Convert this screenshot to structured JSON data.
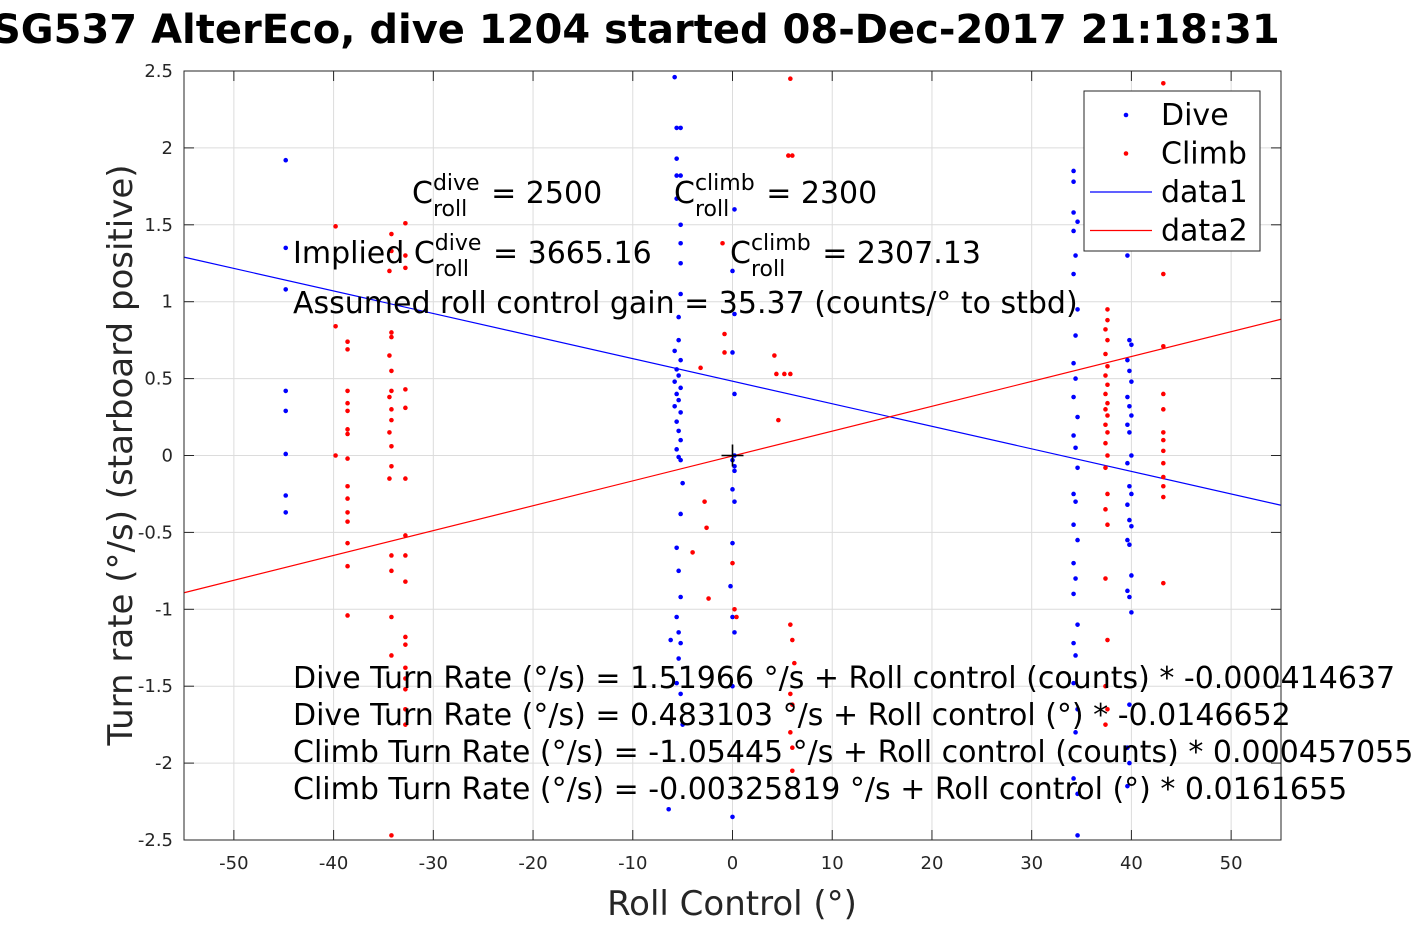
{
  "chart_data": {
    "type": "scatter",
    "title": "SG537 AlterEco, dive 1204 started 08-Dec-2017 21:18:31",
    "xlabel": "Roll Control (°)",
    "ylabel": "Turn rate (°/s) (starboard positive)",
    "xlim": [
      -55,
      55
    ],
    "ylim": [
      -2.5,
      2.5
    ],
    "xticks": [
      -50,
      -40,
      -30,
      -20,
      -10,
      0,
      10,
      20,
      30,
      40,
      50
    ],
    "yticks": [
      2.5,
      2,
      1.5,
      1,
      0.5,
      0,
      -0.5,
      -1,
      -1.5,
      -2,
      -2.5
    ],
    "grid": true,
    "legend_position": "top-right",
    "legend": [
      "Dive",
      "Climb",
      "data1",
      "data2"
    ],
    "colors": {
      "dive": "#0000ff",
      "climb": "#ff0000",
      "marker": "#000000"
    },
    "series": [
      {
        "name": "Dive",
        "kind": "points",
        "color": "#0000ff",
        "points": [
          [
            -44.8,
            1.92
          ],
          [
            -44.8,
            1.35
          ],
          [
            -44.8,
            1.08
          ],
          [
            -44.8,
            0.42
          ],
          [
            -44.8,
            0.29
          ],
          [
            -44.8,
            0.01
          ],
          [
            -44.8,
            -0.26
          ],
          [
            -44.8,
            -0.37
          ],
          [
            -5.8,
            2.46
          ],
          [
            -5.6,
            2.13
          ],
          [
            -5.2,
            2.13
          ],
          [
            -5.6,
            1.93
          ],
          [
            -5.6,
            1.82
          ],
          [
            -5.2,
            1.82
          ],
          [
            -5.6,
            1.67
          ],
          [
            -5.2,
            1.5
          ],
          [
            -5.2,
            1.38
          ],
          [
            -5.2,
            1.25
          ],
          [
            -5.2,
            1.05
          ],
          [
            -5.4,
            0.9
          ],
          [
            -5.4,
            0.75
          ],
          [
            -5.8,
            0.68
          ],
          [
            -5.2,
            0.62
          ],
          [
            -5.6,
            0.56
          ],
          [
            -5.4,
            0.52
          ],
          [
            -5.8,
            0.48
          ],
          [
            -5.2,
            0.44
          ],
          [
            -5.6,
            0.4
          ],
          [
            -5.4,
            0.36
          ],
          [
            -5.8,
            0.32
          ],
          [
            -5.2,
            0.28
          ],
          [
            -5.6,
            0.22
          ],
          [
            -5.4,
            0.16
          ],
          [
            -5.2,
            0.1
          ],
          [
            -5.6,
            0.04
          ],
          [
            -5.4,
            -0.01
          ],
          [
            -5.2,
            -0.03
          ],
          [
            -5.0,
            -0.18
          ],
          [
            -5.2,
            -0.38
          ],
          [
            -5.6,
            -0.6
          ],
          [
            -5.4,
            -0.75
          ],
          [
            -5.2,
            -0.92
          ],
          [
            -5.6,
            -1.05
          ],
          [
            -5.4,
            -1.15
          ],
          [
            -5.2,
            -1.22
          ],
          [
            -6.2,
            -1.2
          ],
          [
            -5.4,
            -1.32
          ],
          [
            -5.6,
            -1.48
          ],
          [
            -5.2,
            -1.55
          ],
          [
            -5.0,
            -1.75
          ],
          [
            -6.4,
            -2.3
          ],
          [
            0.2,
            1.6
          ],
          [
            0.0,
            1.2
          ],
          [
            0.2,
            0.92
          ],
          [
            0.0,
            0.67
          ],
          [
            0.2,
            0.4
          ],
          [
            0.2,
            0.0
          ],
          [
            0.0,
            -0.03
          ],
          [
            0.2,
            -0.07
          ],
          [
            0.2,
            -0.1
          ],
          [
            0.0,
            -0.22
          ],
          [
            0.2,
            -0.3
          ],
          [
            0.0,
            -0.57
          ],
          [
            -0.2,
            -0.85
          ],
          [
            0.0,
            -1.05
          ],
          [
            0.2,
            -1.15
          ],
          [
            0.0,
            -1.5
          ],
          [
            0.0,
            -2.35
          ],
          [
            34.2,
            1.85
          ],
          [
            34.2,
            1.78
          ],
          [
            34.2,
            1.58
          ],
          [
            34.6,
            1.52
          ],
          [
            34.2,
            1.46
          ],
          [
            34.4,
            1.3
          ],
          [
            34.2,
            1.18
          ],
          [
            34.6,
            0.95
          ],
          [
            34.4,
            0.78
          ],
          [
            34.2,
            0.6
          ],
          [
            34.4,
            0.5
          ],
          [
            34.2,
            0.38
          ],
          [
            34.6,
            0.25
          ],
          [
            34.2,
            0.13
          ],
          [
            34.4,
            0.05
          ],
          [
            34.6,
            -0.08
          ],
          [
            34.2,
            -0.25
          ],
          [
            34.4,
            -0.3
          ],
          [
            34.2,
            -0.45
          ],
          [
            34.6,
            -0.55
          ],
          [
            34.2,
            -0.7
          ],
          [
            34.4,
            -0.8
          ],
          [
            34.2,
            -0.9
          ],
          [
            34.6,
            -1.1
          ],
          [
            34.2,
            -1.22
          ],
          [
            34.4,
            -1.3
          ],
          [
            34.2,
            -1.48
          ],
          [
            34.6,
            -1.65
          ],
          [
            34.4,
            -1.8
          ],
          [
            34.2,
            -2.1
          ],
          [
            34.6,
            -2.2
          ],
          [
            34.6,
            -2.47
          ],
          [
            39.6,
            1.3
          ],
          [
            39.8,
            0.75
          ],
          [
            40.0,
            0.72
          ],
          [
            39.6,
            0.62
          ],
          [
            39.8,
            0.55
          ],
          [
            40.0,
            0.48
          ],
          [
            39.6,
            0.38
          ],
          [
            39.8,
            0.32
          ],
          [
            40.0,
            0.26
          ],
          [
            39.6,
            0.2
          ],
          [
            39.8,
            0.15
          ],
          [
            40.0,
            0.0
          ],
          [
            39.6,
            -0.05
          ],
          [
            39.8,
            -0.2
          ],
          [
            40.0,
            -0.25
          ],
          [
            39.6,
            -0.32
          ],
          [
            39.8,
            -0.42
          ],
          [
            40.0,
            -0.46
          ],
          [
            39.6,
            -0.55
          ],
          [
            39.8,
            -0.58
          ],
          [
            40.0,
            -0.78
          ],
          [
            39.6,
            -0.88
          ],
          [
            39.8,
            -0.92
          ],
          [
            40.0,
            -1.02
          ],
          [
            39.8,
            -1.62
          ],
          [
            39.6,
            -1.9
          ],
          [
            39.8,
            -2.0
          ],
          [
            39.6,
            -2.15
          ]
        ]
      },
      {
        "name": "Climb",
        "kind": "points",
        "color": "#ff0000",
        "points": [
          [
            -39.8,
            1.49
          ],
          [
            -39.8,
            0.84
          ],
          [
            -39.8,
            0.0
          ],
          [
            -38.6,
            0.74
          ],
          [
            -38.6,
            0.69
          ],
          [
            -38.6,
            0.42
          ],
          [
            -38.6,
            0.34
          ],
          [
            -38.6,
            0.29
          ],
          [
            -38.6,
            0.17
          ],
          [
            -38.6,
            0.14
          ],
          [
            -38.6,
            -0.02
          ],
          [
            -38.6,
            -0.2
          ],
          [
            -38.6,
            -0.28
          ],
          [
            -38.6,
            -0.37
          ],
          [
            -38.6,
            -0.43
          ],
          [
            -38.6,
            -0.57
          ],
          [
            -38.6,
            -0.72
          ],
          [
            -38.6,
            -1.04
          ],
          [
            -34.2,
            1.44
          ],
          [
            -34.2,
            1.33
          ],
          [
            -34.4,
            1.2
          ],
          [
            -34.2,
            0.8
          ],
          [
            -34.2,
            0.77
          ],
          [
            -34.4,
            0.65
          ],
          [
            -34.2,
            0.55
          ],
          [
            -34.2,
            0.42
          ],
          [
            -34.4,
            0.38
          ],
          [
            -34.2,
            0.3
          ],
          [
            -34.2,
            0.23
          ],
          [
            -34.4,
            0.15
          ],
          [
            -34.2,
            0.06
          ],
          [
            -34.2,
            -0.07
          ],
          [
            -34.4,
            -0.15
          ],
          [
            -34.2,
            -0.65
          ],
          [
            -34.2,
            -0.75
          ],
          [
            -34.2,
            -1.05
          ],
          [
            -34.2,
            -1.3
          ],
          [
            -34.2,
            -2.47
          ],
          [
            -32.8,
            1.51
          ],
          [
            -32.8,
            1.3
          ],
          [
            -32.8,
            1.22
          ],
          [
            -32.8,
            0.43
          ],
          [
            -32.8,
            0.31
          ],
          [
            -32.8,
            -0.15
          ],
          [
            -32.8,
            -0.52
          ],
          [
            -32.8,
            -0.65
          ],
          [
            -32.8,
            -0.82
          ],
          [
            -32.8,
            -1.18
          ],
          [
            -32.8,
            -1.23
          ],
          [
            -32.8,
            -1.38
          ],
          [
            -32.8,
            -1.45
          ],
          [
            -32.8,
            -1.52
          ],
          [
            -32.8,
            -1.65
          ],
          [
            -32.8,
            -1.75
          ],
          [
            -4.0,
            -0.63
          ],
          [
            -3.2,
            0.57
          ],
          [
            -2.8,
            -0.3
          ],
          [
            -2.6,
            -0.47
          ],
          [
            -2.4,
            -0.93
          ],
          [
            -1.0,
            1.38
          ],
          [
            -0.8,
            0.79
          ],
          [
            -0.8,
            0.67
          ],
          [
            0.0,
            -0.7
          ],
          [
            0.2,
            -1.0
          ],
          [
            0.4,
            -1.05
          ],
          [
            4.2,
            0.65
          ],
          [
            4.4,
            0.53
          ],
          [
            4.6,
            0.23
          ],
          [
            5.2,
            0.53
          ],
          [
            5.6,
            1.95
          ],
          [
            5.8,
            2.45
          ],
          [
            5.8,
            0.53
          ],
          [
            5.8,
            -1.1
          ],
          [
            6.0,
            1.95
          ],
          [
            6.0,
            -1.2
          ],
          [
            6.2,
            -1.35
          ],
          [
            5.8,
            -1.55
          ],
          [
            6.0,
            -1.62
          ],
          [
            5.8,
            -1.8
          ],
          [
            6.0,
            -1.9
          ],
          [
            6.0,
            -2.05
          ],
          [
            37.6,
            0.95
          ],
          [
            37.6,
            0.88
          ],
          [
            37.4,
            0.82
          ],
          [
            37.6,
            0.75
          ],
          [
            37.4,
            0.66
          ],
          [
            37.6,
            0.58
          ],
          [
            37.4,
            0.52
          ],
          [
            37.6,
            0.46
          ],
          [
            37.4,
            0.4
          ],
          [
            37.6,
            0.34
          ],
          [
            37.4,
            0.3
          ],
          [
            37.6,
            0.26
          ],
          [
            37.4,
            0.2
          ],
          [
            37.6,
            0.15
          ],
          [
            37.4,
            0.08
          ],
          [
            37.6,
            0.0
          ],
          [
            37.4,
            -0.08
          ],
          [
            37.6,
            -0.25
          ],
          [
            37.4,
            -0.35
          ],
          [
            37.6,
            -0.45
          ],
          [
            37.4,
            -0.8
          ],
          [
            37.6,
            -1.2
          ],
          [
            37.4,
            -1.5
          ],
          [
            37.6,
            -1.65
          ],
          [
            37.4,
            -1.75
          ],
          [
            43.2,
            2.42
          ],
          [
            43.2,
            1.18
          ],
          [
            43.2,
            0.71
          ],
          [
            43.2,
            0.4
          ],
          [
            43.2,
            0.3
          ],
          [
            43.2,
            0.15
          ],
          [
            43.2,
            0.1
          ],
          [
            43.2,
            0.03
          ],
          [
            43.2,
            -0.05
          ],
          [
            43.2,
            -0.14
          ],
          [
            43.2,
            -0.2
          ],
          [
            43.2,
            -0.27
          ],
          [
            43.2,
            -0.83
          ]
        ]
      },
      {
        "name": "data1",
        "kind": "line",
        "color": "#0000ff",
        "x": [
          -55,
          55
        ],
        "y": [
          1.2898,
          -0.3234
        ]
      },
      {
        "name": "data2",
        "kind": "line",
        "color": "#ff0000",
        "x": [
          -55,
          55
        ],
        "y": [
          -0.8924,
          0.8859
        ]
      },
      {
        "kind": "marker",
        "shape": "plus",
        "color": "#000000",
        "x": 0,
        "y": 0
      }
    ],
    "annotations": [
      {
        "base": "C",
        "sup": "dive",
        "sub": "roll",
        "value": " = 2500"
      },
      {
        "base": "C",
        "sup": "climb",
        "sub": "roll",
        "value": " = 2300"
      },
      {
        "prefix": "Implied C",
        "sup": "dive",
        "sub": "roll",
        "value": " = 3665.16"
      },
      {
        "base": "C",
        "sup": "climb",
        "sub": "roll",
        "value": " = 2307.13"
      },
      {
        "text": "Assumed roll control gain = 35.37 (counts/° to stbd)"
      },
      {
        "text": "Dive Turn Rate (°/s) = 1.51966 °/s + Roll control (counts) * -0.000414637"
      },
      {
        "text": "Dive Turn Rate (°/s) = 0.483103 °/s + Roll control (°) * -0.0146652"
      },
      {
        "text": "Climb Turn Rate (°/s) = -1.05445 °/s + Roll control (counts) * 0.000457055"
      },
      {
        "text": "Climb Turn Rate (°/s) = -0.00325819 °/s + Roll control (°) * 0.0161655"
      }
    ]
  }
}
